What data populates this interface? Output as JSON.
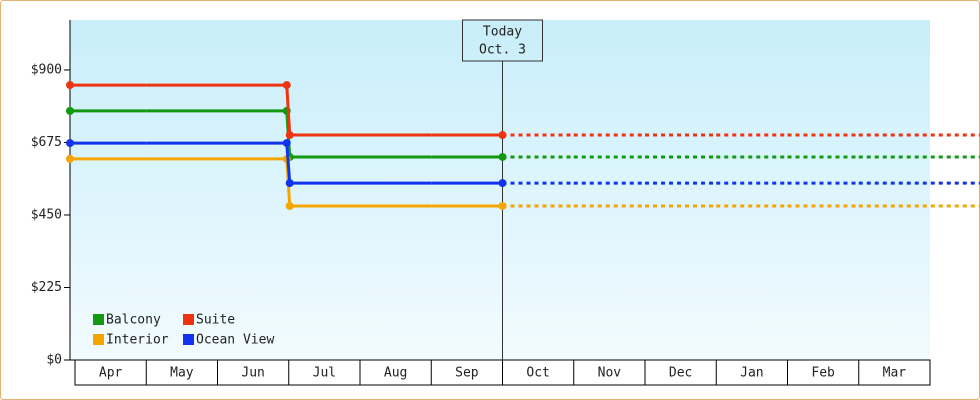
{
  "chart_data": {
    "type": "step",
    "categories": [
      "Apr",
      "May",
      "Jun",
      "Jul",
      "Aug",
      "Sep",
      "Oct",
      "Nov",
      "Dec",
      "Jan",
      "Feb",
      "Mar"
    ],
    "series": [
      {
        "name": "Balcony",
        "color": "#119911",
        "values": [
          773,
          773,
          773,
          630,
          630,
          630,
          630,
          630,
          630,
          630,
          630,
          630
        ]
      },
      {
        "name": "Suite",
        "color": "#ee3311",
        "values": [
          853,
          853,
          853,
          698,
          698,
          698,
          698,
          698,
          698,
          698,
          698,
          698
        ]
      },
      {
        "name": "Interior",
        "color": "#f5a500",
        "values": [
          624,
          624,
          624,
          478,
          478,
          478,
          478,
          478,
          478,
          478,
          478,
          478
        ]
      },
      {
        "name": "Ocean View",
        "color": "#1133ee",
        "values": [
          673,
          673,
          673,
          549,
          549,
          549,
          549,
          549,
          549,
          549,
          549,
          549
        ]
      }
    ],
    "ylim": [
      0,
      1055
    ],
    "yticks": [
      {
        "value": 0,
        "label": "$0"
      },
      {
        "value": 225,
        "label": "$225"
      },
      {
        "value": 450,
        "label": "$450"
      },
      {
        "value": 675,
        "label": "$675"
      },
      {
        "value": 900,
        "label": "$900"
      }
    ],
    "annotation": {
      "lines": [
        "Today",
        "Oct. 3"
      ]
    }
  }
}
